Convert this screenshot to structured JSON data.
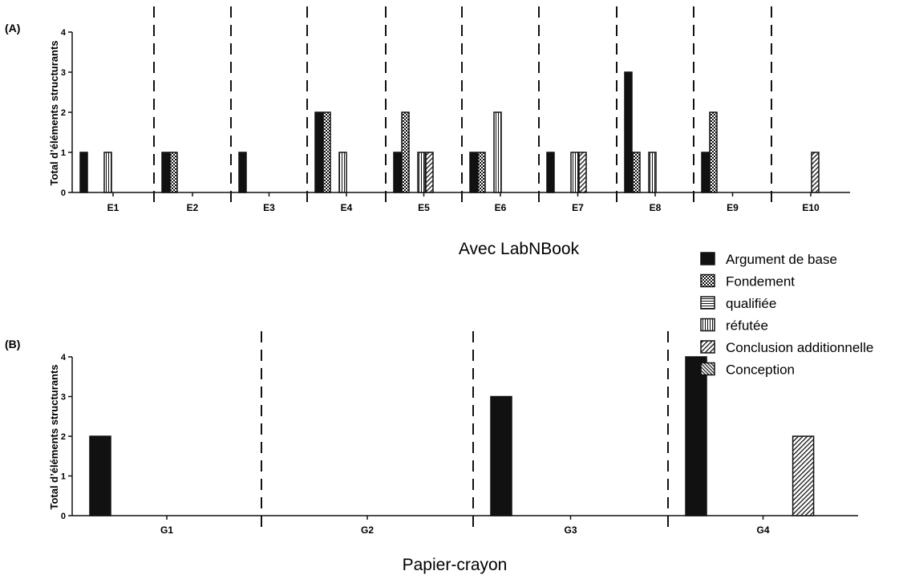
{
  "legend": [
    {
      "label": "Argument de base",
      "pattern": "solid"
    },
    {
      "label": "Fondement",
      "pattern": "checker"
    },
    {
      "label": "qualifiée",
      "pattern": "hlines"
    },
    {
      "label": "réfutée",
      "pattern": "vlines"
    },
    {
      "label": "Conclusion additionnelle",
      "pattern": "diag"
    },
    {
      "label": "Conception",
      "pattern": "diagdense"
    }
  ],
  "chart_data": [
    {
      "type": "bar",
      "panel_label": "(A)",
      "title": "Avec LabNBook",
      "ylabel": "Total d’éléments structurants",
      "ylim": [
        0,
        4
      ],
      "yticks": [
        0,
        1,
        2,
        3,
        4
      ],
      "categories": [
        "E1",
        "E2",
        "E3",
        "E4",
        "E5",
        "E6",
        "E7",
        "E8",
        "E9",
        "E10"
      ],
      "series": [
        {
          "name": "Argument de base",
          "values": [
            1,
            1,
            1,
            2,
            1,
            1,
            1,
            3,
            1,
            0
          ]
        },
        {
          "name": "Fondement",
          "values": [
            0,
            1,
            0,
            2,
            2,
            1,
            0,
            1,
            2,
            0
          ]
        },
        {
          "name": "qualifiée",
          "values": [
            0,
            0,
            0,
            0,
            0,
            0,
            0,
            0,
            0,
            0
          ]
        },
        {
          "name": "réfutée",
          "values": [
            1,
            0,
            0,
            1,
            1,
            2,
            1,
            1,
            0,
            0
          ]
        },
        {
          "name": "Conclusion additionnelle",
          "values": [
            0,
            0,
            0,
            0,
            1,
            0,
            1,
            0,
            0,
            1
          ]
        },
        {
          "name": "Conception",
          "values": [
            0,
            0,
            0,
            0,
            0,
            0,
            0,
            0,
            0,
            0
          ]
        }
      ],
      "grid": false,
      "legend_position": "right"
    },
    {
      "type": "bar",
      "panel_label": "(B)",
      "title": "Papier-crayon",
      "ylabel": "Total d’éléments structurants",
      "ylim": [
        0,
        4
      ],
      "yticks": [
        0,
        1,
        2,
        3,
        4
      ],
      "categories": [
        "G1",
        "G2",
        "G3",
        "G4"
      ],
      "series": [
        {
          "name": "Argument de base",
          "values": [
            2,
            0,
            3,
            4
          ]
        },
        {
          "name": "Fondement",
          "values": [
            0,
            0,
            0,
            0
          ]
        },
        {
          "name": "qualifiée",
          "values": [
            0,
            0,
            0,
            0
          ]
        },
        {
          "name": "réfutée",
          "values": [
            0,
            0,
            0,
            0
          ]
        },
        {
          "name": "Conclusion additionnelle",
          "values": [
            0,
            0,
            0,
            2
          ]
        },
        {
          "name": "Conception",
          "values": [
            0,
            0,
            0,
            0
          ]
        }
      ],
      "grid": false,
      "legend_position": "top-right"
    }
  ]
}
